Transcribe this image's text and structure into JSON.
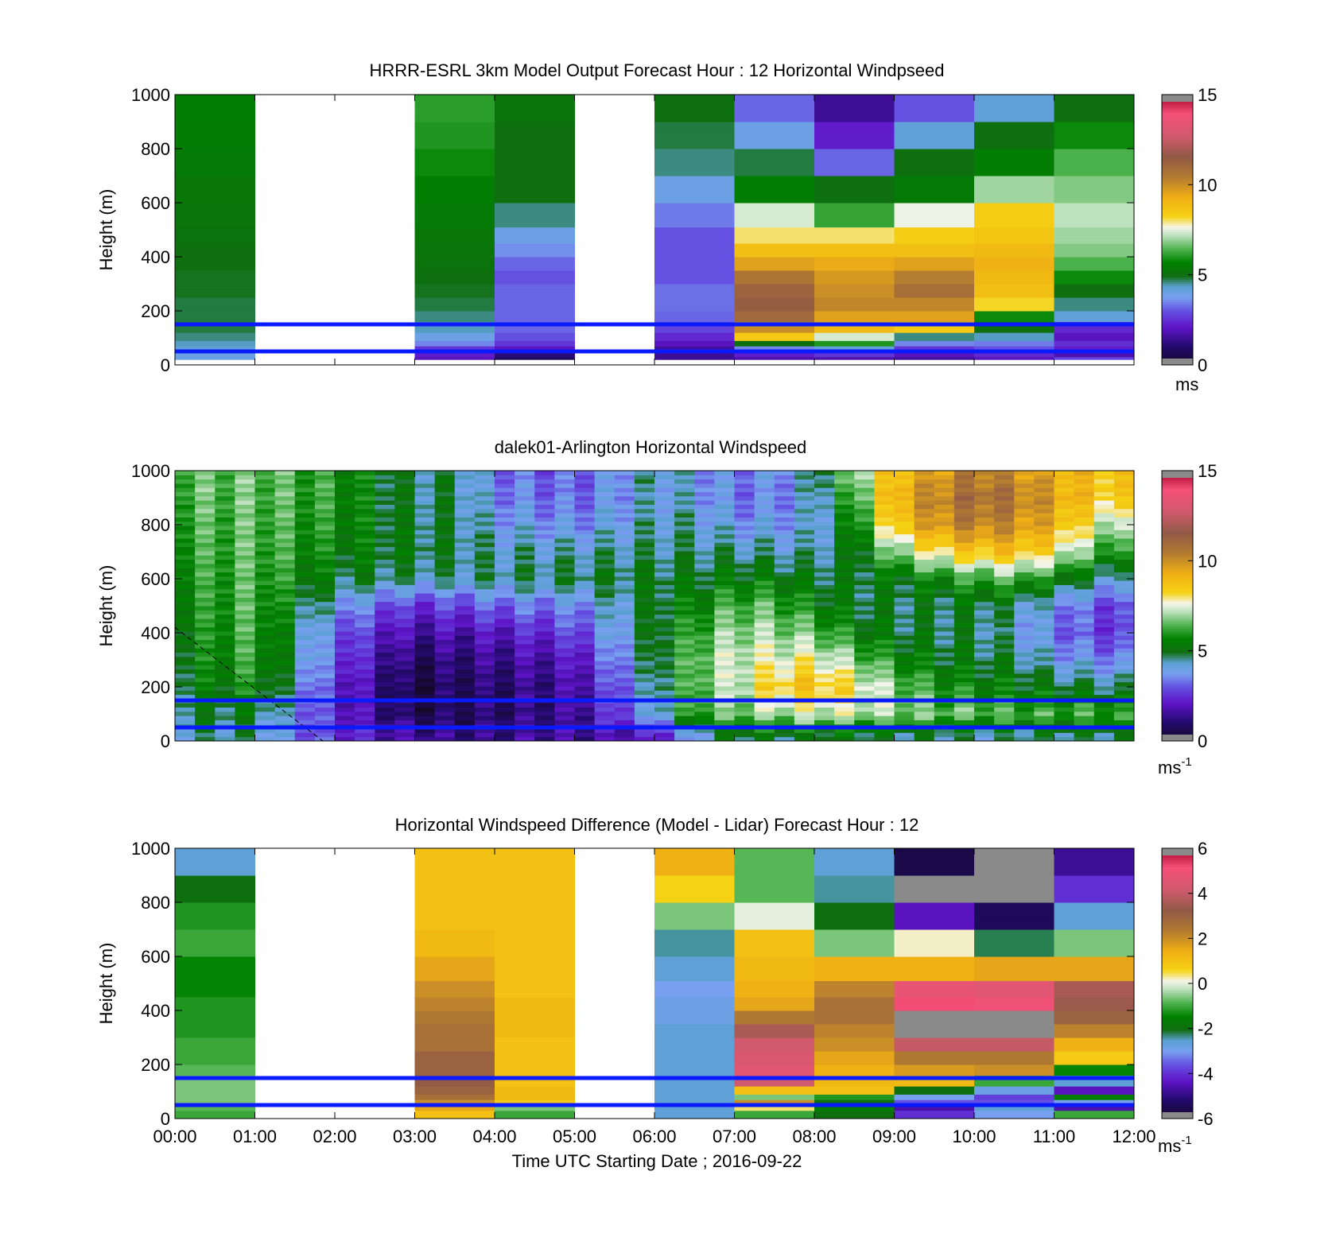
{
  "figure": {
    "xlabel": "Time UTC  Starting Date ; 2016-09-22",
    "x_ticks": [
      "00:00",
      "01:00",
      "02:00",
      "03:00",
      "04:00",
      "05:00",
      "06:00",
      "07:00",
      "08:00",
      "09:00",
      "10:00",
      "11:00",
      "12:00"
    ]
  },
  "chart_data": [
    {
      "type": "heatmap",
      "title": "HRRR-ESRL 3km Model Output   Forecast Hour : 12 Horizontal Windpseed",
      "ylabel": "Height (m)",
      "xlim": [
        0,
        12
      ],
      "ylim": [
        0,
        1000
      ],
      "y_ticks": [
        "0",
        "200",
        "400",
        "600",
        "800",
        "1000"
      ],
      "colorbar": {
        "range": [
          0,
          15
        ],
        "ticks": [
          "0",
          "5",
          "10",
          "15"
        ],
        "unit": "ms",
        "unit_superscript": ""
      },
      "reference_lines_m": [
        50,
        150
      ],
      "reference_line_color": "#0a1aff",
      "heights_m": [
        20,
        40,
        60,
        80,
        105,
        135,
        175,
        225,
        275,
        325,
        375,
        425,
        475,
        550,
        650,
        750,
        850,
        950
      ],
      "columns": [
        {
          "hour_start": 0,
          "values": [
            4.0,
            4.0,
            4.2,
            4.4,
            4.6,
            4.8,
            4.8,
            4.8,
            4.9,
            4.9,
            5.0,
            5.0,
            5.1,
            5.2,
            5.3,
            5.4,
            5.5,
            5.6
          ]
        },
        {
          "hour_start": 1,
          "values": []
        },
        {
          "hour_start": 2,
          "values": []
        },
        {
          "hour_start": 3,
          "values": [
            2.0,
            2.2,
            2.6,
            3.5,
            4.0,
            4.4,
            4.6,
            4.8,
            4.9,
            5.0,
            5.1,
            5.2,
            5.3,
            5.4,
            5.6,
            5.8,
            6.0,
            6.1
          ]
        },
        {
          "hour_start": 4,
          "values": [
            0.8,
            1.2,
            2.0,
            2.6,
            3.0,
            3.2,
            3.2,
            3.2,
            3.2,
            3.0,
            3.2,
            3.6,
            4.0,
            4.6,
            5.0,
            5.0,
            5.0,
            5.2
          ]
        },
        {
          "hour_start": 5,
          "values": []
        },
        {
          "hour_start": 6,
          "values": [
            1.5,
            1.5,
            1.6,
            2.0,
            2.4,
            2.8,
            3.2,
            3.3,
            3.3,
            3.0,
            3.0,
            3.0,
            3.0,
            3.4,
            4.0,
            4.6,
            4.8,
            5.0
          ]
        },
        {
          "hour_start": 7,
          "values": [
            1.8,
            2.2,
            3.5,
            5.0,
            8.5,
            10.0,
            11.0,
            11.4,
            11.2,
            10.6,
            9.6,
            8.8,
            8.0,
            7.4,
            5.6,
            4.8,
            4.0,
            3.2
          ]
        },
        {
          "hour_start": 8,
          "values": [
            1.8,
            2.6,
            4.2,
            6.0,
            7.4,
            9.0,
            9.6,
            10.2,
            10.0,
            9.8,
            9.4,
            8.8,
            8.0,
            6.2,
            5.0,
            3.2,
            2.2,
            1.5
          ]
        },
        {
          "hour_start": 9,
          "values": [
            1.6,
            2.0,
            2.6,
            3.5,
            4.6,
            8.5,
            9.6,
            10.2,
            10.8,
            10.4,
            9.6,
            8.8,
            8.4,
            7.6,
            5.4,
            5.0,
            4.2,
            3.0
          ]
        },
        {
          "hour_start": 10,
          "values": [
            2.0,
            2.4,
            3.0,
            3.4,
            4.4,
            5.0,
            5.8,
            8.2,
            8.8,
            9.0,
            9.2,
            9.0,
            8.6,
            8.4,
            7.0,
            5.6,
            5.0,
            4.2
          ]
        },
        {
          "hour_start": 11,
          "values": [
            2.8,
            1.8,
            2.2,
            2.5,
            2.0,
            2.4,
            4.2,
            4.6,
            5.0,
            5.8,
            6.4,
            6.8,
            7.0,
            7.2,
            6.8,
            6.4,
            5.8,
            5.0
          ]
        }
      ]
    },
    {
      "type": "heatmap",
      "title": "dalek01-Arlington  Horizontal Windspeed",
      "ylabel": "Height (m)",
      "xlim": [
        0,
        12
      ],
      "ylim": [
        0,
        1000
      ],
      "y_ticks": [
        "0",
        "200",
        "400",
        "600",
        "800",
        "1000"
      ],
      "colorbar": {
        "range": [
          0,
          15
        ],
        "ticks": [
          "0",
          "5",
          "10",
          "15"
        ],
        "unit": "ms",
        "unit_superscript": "-1"
      },
      "reference_lines_m": [
        50,
        150
      ],
      "reference_line_color": "#0a1aff",
      "dashed_line": {
        "from": [
          0,
          420
        ],
        "to": [
          1.85,
          0
        ]
      },
      "time_points_h": [
        0,
        1,
        2,
        3,
        3.5,
        4,
        5,
        6,
        6.5,
        7,
        7.5,
        8,
        8.5,
        9,
        9.5,
        10,
        10.5,
        11,
        11.5,
        12
      ],
      "profile_heights_m": [
        20,
        100,
        200,
        300,
        400,
        500,
        600,
        700,
        800,
        900,
        1000
      ],
      "profiles": [
        [
          4.5,
          4.8,
          5.0,
          5.2,
          5.4,
          5.6,
          5.8,
          6.0,
          6.2,
          6.4,
          6.5
        ],
        [
          4.5,
          5.0,
          5.8,
          6.2,
          6.3,
          6.4,
          6.4,
          6.5,
          6.5,
          6.6,
          6.6
        ],
        [
          2.5,
          2.4,
          2.5,
          3.0,
          3.2,
          4.0,
          5.0,
          5.5,
          5.8,
          6.0,
          6.0
        ],
        [
          1.6,
          0.6,
          0.4,
          0.8,
          1.6,
          2.5,
          4.5,
          5.0,
          4.8,
          4.6,
          4.6
        ],
        [
          1.2,
          0.8,
          0.9,
          1.2,
          1.8,
          2.8,
          4.5,
          4.8,
          4.8,
          4.8,
          4.8
        ],
        [
          1.4,
          1.0,
          1.0,
          1.4,
          2.0,
          3.2,
          4.6,
          4.4,
          4.0,
          3.6,
          3.4
        ],
        [
          1.6,
          1.4,
          1.6,
          2.0,
          2.8,
          3.5,
          4.8,
          4.4,
          3.6,
          3.2,
          3.0
        ],
        [
          2.0,
          4.0,
          4.4,
          4.8,
          5.0,
          5.0,
          5.0,
          4.6,
          4.4,
          4.2,
          4.6
        ],
        [
          4.0,
          6.4,
          6.6,
          6.6,
          6.2,
          5.6,
          5.0,
          4.6,
          4.4,
          4.0,
          3.8
        ],
        [
          5.0,
          6.6,
          7.2,
          7.4,
          7.0,
          6.4,
          5.4,
          4.6,
          3.8,
          3.4,
          3.6
        ],
        [
          5.0,
          7.0,
          8.4,
          7.6,
          7.0,
          6.4,
          5.4,
          4.4,
          3.8,
          3.4,
          3.6
        ],
        [
          5.0,
          7.4,
          8.8,
          7.8,
          6.6,
          5.6,
          5.0,
          4.4,
          4.0,
          4.2,
          4.6
        ],
        [
          5.0,
          7.2,
          8.0,
          6.8,
          5.6,
          5.0,
          5.0,
          5.0,
          5.6,
          6.2,
          7.0
        ],
        [
          4.8,
          7.0,
          6.8,
          5.8,
          5.0,
          4.8,
          5.2,
          6.8,
          8.6,
          9.2,
          8.8
        ],
        [
          4.6,
          6.6,
          6.0,
          5.2,
          4.8,
          4.8,
          5.6,
          8.0,
          9.8,
          10.2,
          9.6
        ],
        [
          4.4,
          6.6,
          5.6,
          5.0,
          4.8,
          5.0,
          6.2,
          8.6,
          10.4,
          11.0,
          10.4
        ],
        [
          4.6,
          6.4,
          5.4,
          4.8,
          4.2,
          4.6,
          6.4,
          8.8,
          10.0,
          10.6,
          10.0
        ],
        [
          4.6,
          6.2,
          5.0,
          4.0,
          3.4,
          3.8,
          5.6,
          8.0,
          9.2,
          9.6,
          9.2
        ],
        [
          4.8,
          6.4,
          4.8,
          3.6,
          2.8,
          3.0,
          4.6,
          6.4,
          7.6,
          8.6,
          8.8
        ],
        [
          4.6,
          6.0,
          4.6,
          3.4,
          2.6,
          2.6,
          4.0,
          5.6,
          6.8,
          8.2,
          8.6
        ]
      ]
    },
    {
      "type": "heatmap",
      "title": "Horizontal Windspeed Difference (Model - Lidar) Forecast Hour : 12",
      "ylabel": "Height (m)",
      "xlim": [
        0,
        12
      ],
      "ylim": [
        0,
        1000
      ],
      "y_ticks": [
        "0",
        "200",
        "400",
        "600",
        "800",
        "1000"
      ],
      "colorbar": {
        "range": [
          -6,
          6
        ],
        "ticks": [
          "-6",
          "-4",
          "-2",
          "0",
          "2",
          "4",
          "6"
        ],
        "unit": "ms",
        "unit_superscript": "-1"
      },
      "reference_lines_m": [
        50,
        150
      ],
      "reference_line_color": "#0a1aff",
      "heights_m": [
        20,
        40,
        60,
        80,
        105,
        135,
        175,
        225,
        275,
        325,
        375,
        425,
        475,
        550,
        650,
        750,
        850,
        950
      ],
      "columns": [
        {
          "hour_start": 0,
          "values": [
            -1.0,
            -0.8,
            -0.6,
            -0.6,
            -0.6,
            -0.6,
            -0.8,
            -1.0,
            -1.0,
            -1.2,
            -1.2,
            -1.2,
            -1.4,
            -1.4,
            -1.0,
            -1.2,
            -2.0,
            -2.6
          ]
        },
        {
          "hour_start": 1,
          "values": []
        },
        {
          "hour_start": 2,
          "values": []
        },
        {
          "hour_start": 3,
          "values": [
            1.0,
            1.6,
            2.0,
            2.6,
            3.0,
            3.2,
            3.0,
            3.0,
            2.6,
            2.6,
            2.4,
            2.2,
            2.0,
            1.6,
            1.2,
            1.0,
            1.0,
            1.0
          ]
        },
        {
          "hour_start": 4,
          "values": [
            -1.0,
            -0.6,
            0.8,
            1.2,
            1.2,
            1.0,
            1.0,
            1.0,
            1.0,
            1.2,
            1.2,
            1.2,
            1.0,
            1.0,
            1.0,
            1.0,
            1.0,
            1.0
          ]
        },
        {
          "hour_start": 5,
          "values": []
        },
        {
          "hour_start": 6,
          "values": [
            -2.6,
            -2.6,
            -2.6,
            -2.6,
            -2.6,
            -2.6,
            -2.6,
            -2.6,
            -2.6,
            -2.6,
            -2.8,
            -2.8,
            -3.0,
            -2.6,
            -2.4,
            -0.6,
            0.6,
            1.4
          ]
        },
        {
          "hour_start": 7,
          "values": [
            -1.0,
            0.4,
            2.0,
            -0.6,
            1.0,
            4.2,
            4.6,
            4.4,
            4.2,
            3.6,
            2.4,
            1.6,
            1.4,
            1.2,
            1.0,
            0.0,
            -0.8,
            -0.8
          ]
        },
        {
          "hour_start": 8,
          "values": [
            -2.0,
            -1.6,
            -2.0,
            -1.2,
            1.0,
            1.2,
            1.4,
            1.6,
            2.0,
            2.2,
            2.6,
            2.6,
            2.2,
            1.4,
            -0.6,
            -2.0,
            -2.4,
            -2.6
          ]
        },
        {
          "hour_start": 9,
          "values": [
            -4.0,
            -4.6,
            -3.6,
            -3.0,
            -2.0,
            1.2,
            1.8,
            2.4,
            4.0,
            null,
            null,
            5.2,
            4.8,
            1.4,
            0.2,
            -4.4,
            null,
            -5.6
          ]
        },
        {
          "hour_start": 10,
          "values": [
            -3.0,
            -2.6,
            -3.6,
            -3.8,
            -2.8,
            -1.0,
            2.0,
            2.4,
            4.0,
            null,
            null,
            5.0,
            4.6,
            1.6,
            -2.2,
            -5.4,
            null,
            null
          ]
        },
        {
          "hour_start": 11,
          "values": [
            -1.0,
            -4.6,
            -3.0,
            -1.6,
            -4.4,
            -2.6,
            -1.4,
            0.8,
            1.4,
            2.2,
            3.0,
            3.4,
            3.6,
            1.6,
            -0.6,
            -2.6,
            -4.0,
            -4.8
          ]
        }
      ]
    }
  ]
}
